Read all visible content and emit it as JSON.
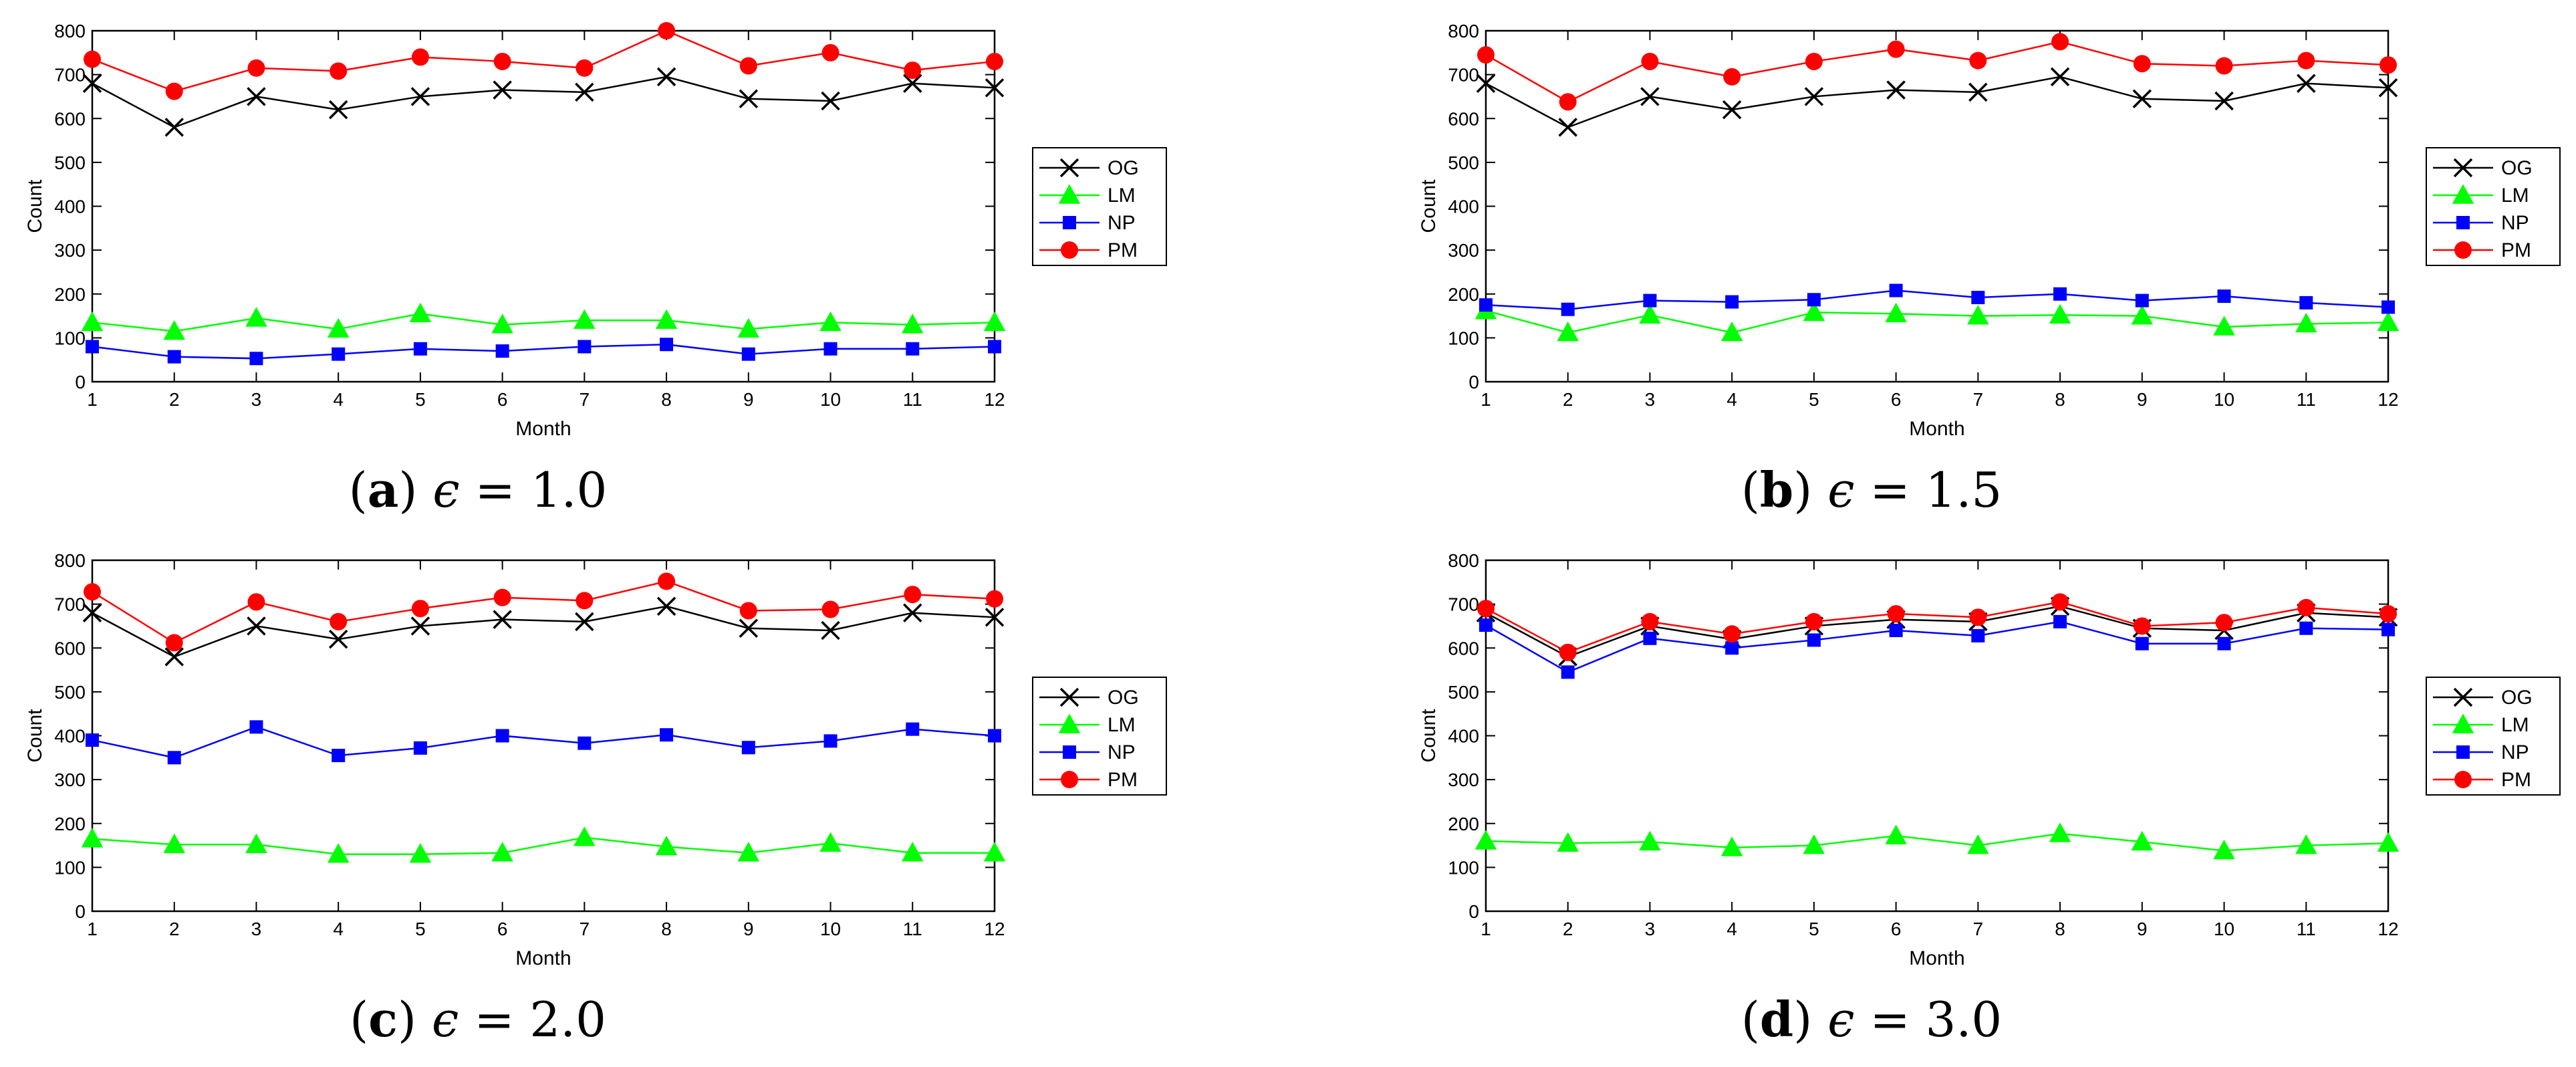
{
  "chart_data": [
    {
      "type": "line",
      "panel": "a",
      "caption": {
        "letter": "a",
        "epsilon": "1.0"
      },
      "xlabel": "Month",
      "ylabel": "Count",
      "xlim": [
        1,
        12
      ],
      "ylim": [
        0,
        800
      ],
      "xticks": [
        "1",
        "2",
        "3",
        "4",
        "5",
        "6",
        "7",
        "8",
        "9",
        "10",
        "11",
        "12"
      ],
      "yticks": [
        "0",
        "100",
        "200",
        "300",
        "400",
        "500",
        "600",
        "700",
        "800"
      ],
      "legend_position": "outside-right",
      "x": [
        1,
        2,
        3,
        4,
        5,
        6,
        7,
        8,
        9,
        10,
        11,
        12
      ],
      "series": [
        {
          "name": "OG",
          "color": "#000000",
          "marker": "x",
          "values": [
            680,
            580,
            650,
            620,
            650,
            665,
            660,
            695,
            645,
            640,
            680,
            670
          ]
        },
        {
          "name": "LM",
          "color": "#00ff00",
          "marker": "triangle",
          "values": [
            135,
            115,
            145,
            120,
            155,
            130,
            140,
            140,
            120,
            135,
            130,
            135
          ]
        },
        {
          "name": "NP",
          "color": "#0000ff",
          "marker": "square",
          "values": [
            80,
            57,
            53,
            63,
            75,
            70,
            80,
            85,
            63,
            75,
            75,
            80
          ]
        },
        {
          "name": "PM",
          "color": "#ff0000",
          "marker": "circle",
          "values": [
            735,
            662,
            715,
            708,
            740,
            730,
            715,
            800,
            720,
            750,
            710,
            730
          ]
        }
      ]
    },
    {
      "type": "line",
      "panel": "b",
      "caption": {
        "letter": "b",
        "epsilon": "1.5"
      },
      "xlabel": "Month",
      "ylabel": "Count",
      "xlim": [
        1,
        12
      ],
      "ylim": [
        0,
        800
      ],
      "xticks": [
        "1",
        "2",
        "3",
        "4",
        "5",
        "6",
        "7",
        "8",
        "9",
        "10",
        "11",
        "12"
      ],
      "yticks": [
        "0",
        "100",
        "200",
        "300",
        "400",
        "500",
        "600",
        "700",
        "800"
      ],
      "legend_position": "outside-right",
      "x": [
        1,
        2,
        3,
        4,
        5,
        6,
        7,
        8,
        9,
        10,
        11,
        12
      ],
      "series": [
        {
          "name": "OG",
          "color": "#000000",
          "marker": "x",
          "values": [
            680,
            580,
            650,
            620,
            650,
            665,
            660,
            695,
            645,
            640,
            680,
            670
          ]
        },
        {
          "name": "LM",
          "color": "#00ff00",
          "marker": "triangle",
          "values": [
            162,
            112,
            152,
            112,
            158,
            155,
            150,
            152,
            150,
            125,
            132,
            135
          ]
        },
        {
          "name": "NP",
          "color": "#0000ff",
          "marker": "square",
          "values": [
            175,
            165,
            185,
            182,
            187,
            208,
            192,
            200,
            185,
            195,
            180,
            170
          ]
        },
        {
          "name": "PM",
          "color": "#ff0000",
          "marker": "circle",
          "values": [
            745,
            638,
            730,
            695,
            730,
            758,
            732,
            775,
            725,
            720,
            732,
            722
          ]
        }
      ]
    },
    {
      "type": "line",
      "panel": "c",
      "caption": {
        "letter": "c",
        "epsilon": "2.0"
      },
      "xlabel": "Month",
      "ylabel": "Count",
      "xlim": [
        1,
        12
      ],
      "ylim": [
        0,
        800
      ],
      "xticks": [
        "1",
        "2",
        "3",
        "4",
        "5",
        "6",
        "7",
        "8",
        "9",
        "10",
        "11",
        "12"
      ],
      "yticks": [
        "0",
        "100",
        "200",
        "300",
        "400",
        "500",
        "600",
        "700",
        "800"
      ],
      "legend_position": "outside-right",
      "x": [
        1,
        2,
        3,
        4,
        5,
        6,
        7,
        8,
        9,
        10,
        11,
        12
      ],
      "series": [
        {
          "name": "OG",
          "color": "#000000",
          "marker": "x",
          "values": [
            680,
            580,
            650,
            620,
            650,
            665,
            660,
            695,
            645,
            640,
            680,
            670
          ]
        },
        {
          "name": "LM",
          "color": "#00ff00",
          "marker": "triangle",
          "values": [
            165,
            152,
            152,
            130,
            130,
            133,
            168,
            147,
            133,
            155,
            133,
            133
          ]
        },
        {
          "name": "NP",
          "color": "#0000ff",
          "marker": "square",
          "values": [
            390,
            350,
            420,
            355,
            372,
            400,
            383,
            402,
            373,
            388,
            415,
            400
          ]
        },
        {
          "name": "PM",
          "color": "#ff0000",
          "marker": "circle",
          "values": [
            728,
            612,
            705,
            660,
            690,
            715,
            708,
            752,
            685,
            688,
            722,
            712
          ]
        }
      ]
    },
    {
      "type": "line",
      "panel": "d",
      "caption": {
        "letter": "d",
        "epsilon": "3.0"
      },
      "xlabel": "Month",
      "ylabel": "Count",
      "xlim": [
        1,
        12
      ],
      "ylim": [
        0,
        800
      ],
      "xticks": [
        "1",
        "2",
        "3",
        "4",
        "5",
        "6",
        "7",
        "8",
        "9",
        "10",
        "11",
        "12"
      ],
      "yticks": [
        "0",
        "100",
        "200",
        "300",
        "400",
        "500",
        "600",
        "700",
        "800"
      ],
      "legend_position": "outside-right",
      "x": [
        1,
        2,
        3,
        4,
        5,
        6,
        7,
        8,
        9,
        10,
        11,
        12
      ],
      "series": [
        {
          "name": "OG",
          "color": "#000000",
          "marker": "x",
          "values": [
            680,
            580,
            650,
            620,
            650,
            665,
            660,
            695,
            645,
            640,
            680,
            670
          ]
        },
        {
          "name": "LM",
          "color": "#00ff00",
          "marker": "triangle",
          "values": [
            160,
            155,
            158,
            145,
            150,
            172,
            150,
            177,
            158,
            138,
            150,
            155
          ]
        },
        {
          "name": "NP",
          "color": "#0000ff",
          "marker": "square",
          "values": [
            652,
            545,
            622,
            600,
            618,
            640,
            628,
            660,
            610,
            610,
            645,
            642
          ]
        },
        {
          "name": "PM",
          "color": "#ff0000",
          "marker": "circle",
          "values": [
            690,
            590,
            660,
            632,
            660,
            678,
            670,
            705,
            650,
            658,
            692,
            678
          ]
        }
      ]
    }
  ]
}
